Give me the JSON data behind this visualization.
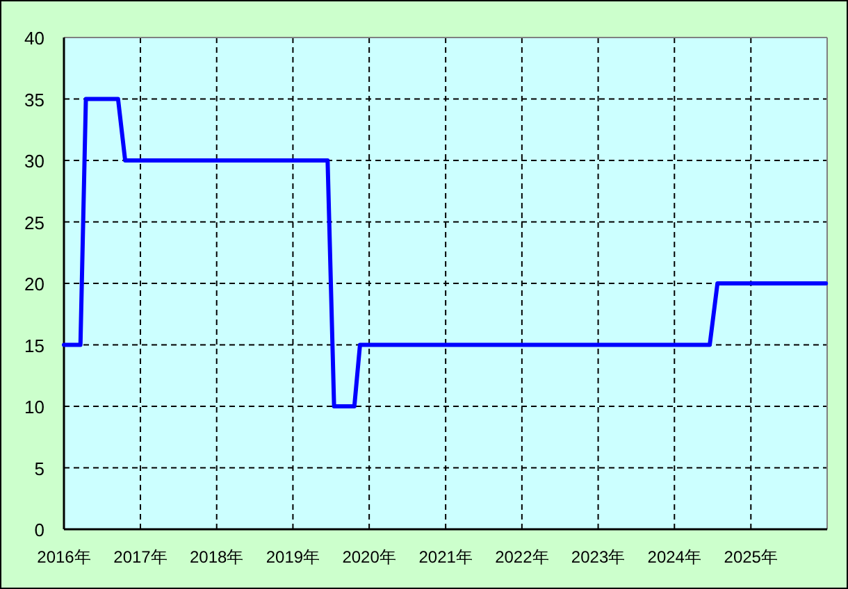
{
  "chart_data": {
    "type": "line",
    "x": [
      "2016-01-01",
      "2016-03-20",
      "2016-04-15",
      "2016-09-16",
      "2016-10-20",
      "2019-06-16",
      "2019-07-17",
      "2019-10-22",
      "2019-11-18",
      "2024-06-18",
      "2024-07-25",
      "2025-12-26"
    ],
    "values": [
      15,
      15,
      35,
      35,
      30,
      30,
      10,
      10,
      15,
      15,
      20,
      20
    ],
    "color": "#0000ff",
    "line_style": "solid",
    "xlim": [
      "2016-01-01",
      "2026-01-01"
    ],
    "xticks": [
      {
        "value": "2016",
        "label": "2016年"
      },
      {
        "value": "2017",
        "label": "2017年"
      },
      {
        "value": "2018",
        "label": "2018年"
      },
      {
        "value": "2019",
        "label": "2019年"
      },
      {
        "value": "2020",
        "label": "2020年"
      },
      {
        "value": "2021",
        "label": "2021年"
      },
      {
        "value": "2022",
        "label": "2022年"
      },
      {
        "value": "2023",
        "label": "2023年"
      },
      {
        "value": "2024",
        "label": "2024年"
      },
      {
        "value": "2025",
        "label": "2025年"
      }
    ],
    "ylim": [
      0,
      40
    ],
    "yticks": [
      0,
      5,
      10,
      15,
      20,
      25,
      30,
      35,
      40
    ],
    "grid": true
  }
}
